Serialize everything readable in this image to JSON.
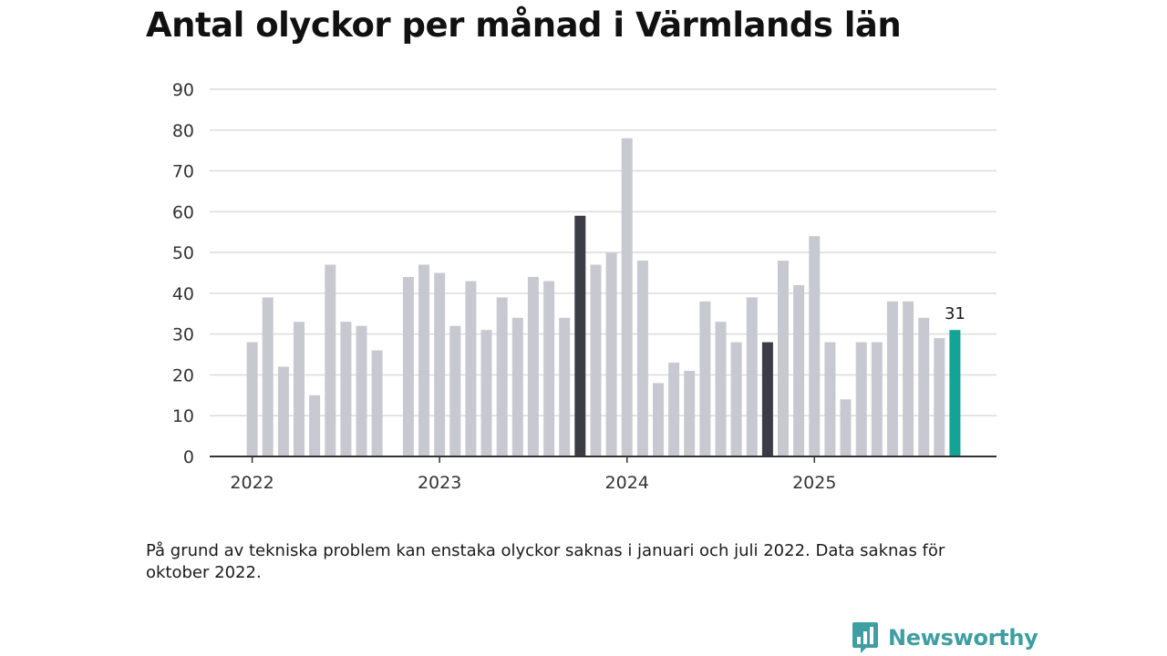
{
  "title": "Antal olyckor per månad i Värmlands län",
  "footnote": "På grund av tekniska problem kan enstaka olyckor saknas i januari och juli 2022. Data saknas för oktober 2022.",
  "brand": {
    "name": "Newsworthy",
    "icon": "newsworthy-logo-icon"
  },
  "colors": {
    "default": "#c8c8d1",
    "highlight": "#3c3c47",
    "latest": "#13a397",
    "grid": "#dcdcdc",
    "axis": "#333333"
  },
  "chart_data": {
    "type": "bar",
    "title": "Antal olyckor per månad i Värmlands län",
    "xlabel": "",
    "ylabel": "",
    "ylim": [
      0,
      90
    ],
    "yticks": [
      "0",
      "10",
      "20",
      "30",
      "40",
      "50",
      "60",
      "70",
      "80",
      "90"
    ],
    "xticks": [
      {
        "label": "2022",
        "index": 0
      },
      {
        "label": "2023",
        "index": 12
      },
      {
        "label": "2024",
        "index": 24
      },
      {
        "label": "2025",
        "index": 36
      }
    ],
    "grid": true,
    "legend": "none",
    "categories": [
      "2022-01",
      "2022-02",
      "2022-03",
      "2022-04",
      "2022-05",
      "2022-06",
      "2022-07",
      "2022-08",
      "2022-09",
      "2022-10",
      "2022-11",
      "2022-12",
      "2023-01",
      "2023-02",
      "2023-03",
      "2023-04",
      "2023-05",
      "2023-06",
      "2023-07",
      "2023-08",
      "2023-09",
      "2023-10",
      "2023-11",
      "2023-12",
      "2024-01",
      "2024-02",
      "2024-03",
      "2024-04",
      "2024-05",
      "2024-06",
      "2024-07",
      "2024-08",
      "2024-09",
      "2024-10",
      "2024-11",
      "2024-12",
      "2025-01",
      "2025-02",
      "2025-03",
      "2025-04",
      "2025-05",
      "2025-06",
      "2025-07",
      "2025-08",
      "2025-09",
      "2025-10"
    ],
    "values": [
      28,
      39,
      22,
      33,
      15,
      47,
      33,
      32,
      26,
      null,
      44,
      47,
      45,
      32,
      43,
      31,
      39,
      34,
      44,
      43,
      34,
      59,
      47,
      50,
      78,
      48,
      18,
      23,
      21,
      38,
      33,
      28,
      39,
      28,
      48,
      42,
      54,
      28,
      14,
      28,
      28,
      38,
      38,
      34,
      29,
      31
    ],
    "highlight_indices": [
      21,
      33
    ],
    "latest_index": 45,
    "data_labels": [
      {
        "index": 45,
        "text": "31"
      }
    ]
  }
}
